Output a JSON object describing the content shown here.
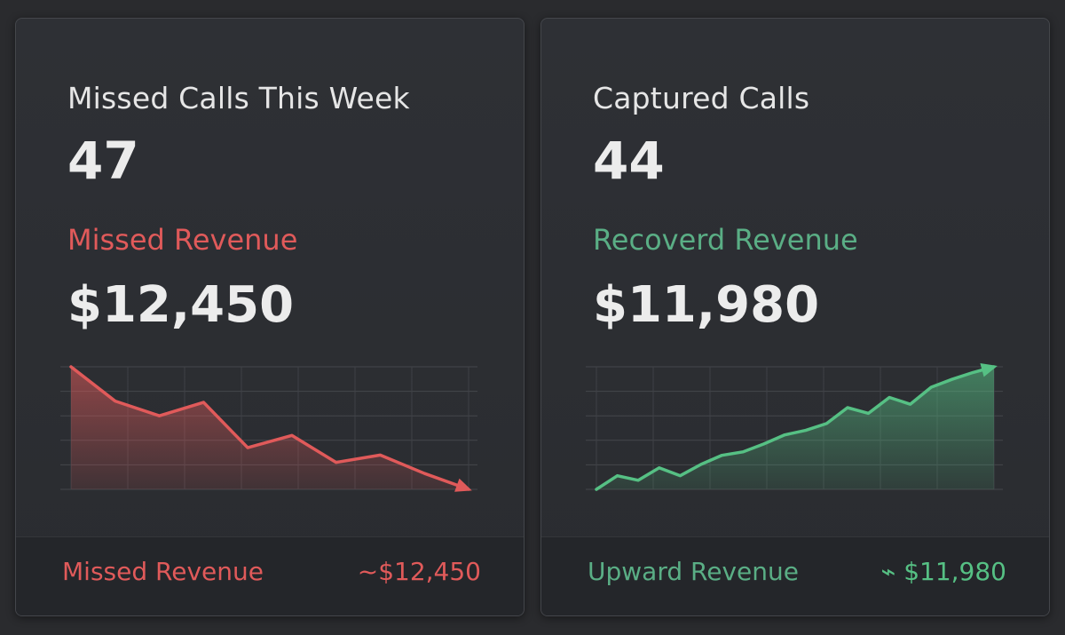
{
  "colors": {
    "loss": "#e05a5a",
    "gain": "#56c084",
    "background": "#2a2b2e",
    "card": "#2e3035"
  },
  "cards": [
    {
      "title": "Missed Calls This Week",
      "count": "47",
      "revenue_label": "Missed Revenue",
      "revenue_value": "$12,450",
      "footer_label": "Missed Revenue",
      "footer_value": "~$12,450"
    },
    {
      "title": "Captured Calls",
      "count": "44",
      "revenue_label": "Recoverd Revenue",
      "revenue_value": "$11,980",
      "footer_label": "Upward Revenue",
      "footer_value": "⌁ $11,980"
    }
  ],
  "chart_data": [
    {
      "type": "area",
      "title": "",
      "trend": "down",
      "x": [
        0,
        1,
        2,
        3,
        4,
        5,
        6,
        7,
        8,
        9
      ],
      "values": [
        100,
        72,
        60,
        71,
        34,
        44,
        22,
        28,
        13,
        0
      ],
      "ylim": [
        0,
        100
      ],
      "grid": true,
      "arrow": "end"
    },
    {
      "type": "area",
      "title": "",
      "trend": "up",
      "x": [
        0,
        1,
        2,
        3,
        4,
        5,
        6,
        7,
        8,
        9,
        10,
        11,
        12,
        13,
        14,
        15,
        16,
        17,
        18,
        19
      ],
      "values": [
        0,
        12,
        8,
        19,
        12,
        22,
        30,
        33,
        40,
        48,
        52,
        58,
        72,
        67,
        81,
        75,
        90,
        97,
        103,
        108
      ],
      "ylim": [
        0,
        108
      ],
      "grid": true,
      "arrow": "end"
    }
  ]
}
